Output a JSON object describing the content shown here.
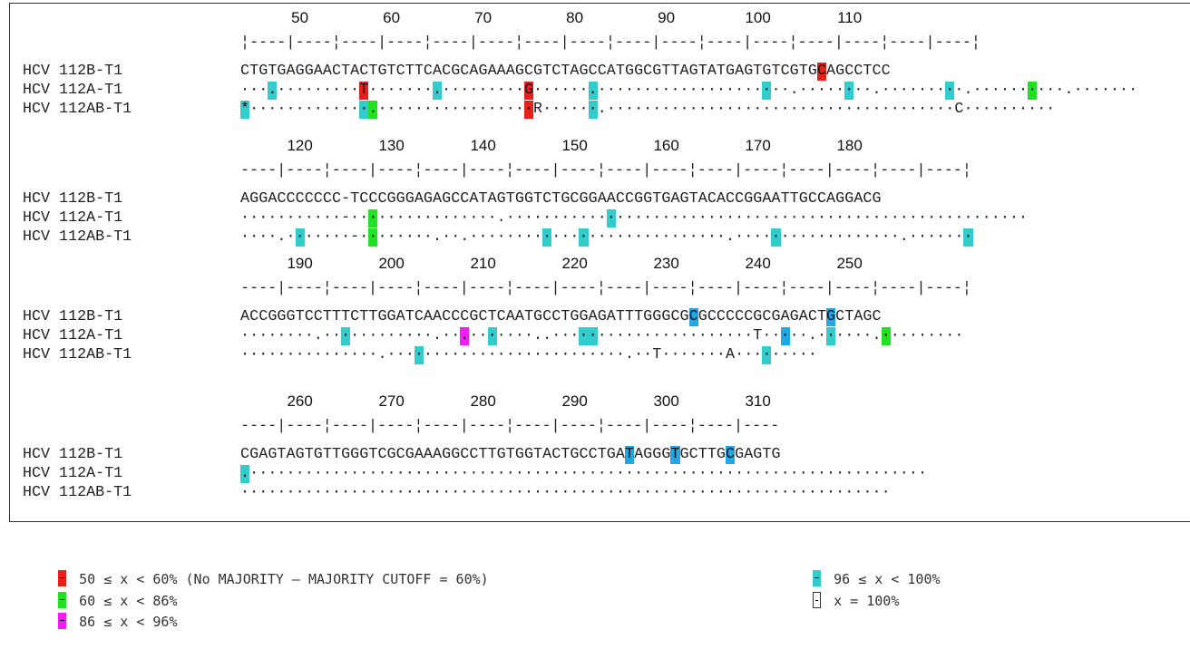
{
  "blocks": [
    {
      "start": 44,
      "numbers": [
        [
          "50",
          "50"
        ],
        [
          "60",
          "60"
        ],
        [
          "70",
          "70"
        ],
        [
          "80",
          "80"
        ],
        [
          "90",
          "90"
        ],
        [
          "100",
          "100"
        ],
        [
          "110",
          "110"
        ]
      ],
      "ruler": "¦----|----¦----|----¦----|----¦----|----¦----|----¦----|----¦----|----¦----|----¦",
      "rows": [
        {
          "label": "HCV 112B-T1",
          "seq": "CTGTGAGGAACTACTGTCTTCACGCAGAAAGCGTCTAGCCATGGCGTTAGTATGAGTGTCGTGCAGCCTCC",
          "hl": {
            "63": "red"
          }
        },
        {
          "label": "HCV 112A-T1",
          "seq": "···.·········T·······.·········G······.·····················.········.·········.··········.·······.······",
          "hl": {
            "3": "cyan",
            "13": "red",
            "21": "cyan",
            "31": "red",
            "38": "cyan",
            "57": "cyan",
            "66": "cyan",
            "77": "cyan",
            "86": "green"
          }
        },
        {
          "label": "HCV 112AB-T1",
          "seq": "*·············.·················R······.······································C··········",
          "hl": {
            "0": "cyan",
            "13": "cyan",
            "14": "green",
            "31": "red",
            "38": "cyan"
          }
        }
      ]
    },
    {
      "start": 114,
      "numbers": [
        [
          "120",
          "120"
        ],
        [
          "130",
          "130"
        ],
        [
          "140",
          "140"
        ],
        [
          "150",
          "150"
        ],
        [
          "160",
          "160"
        ],
        [
          "170",
          "170"
        ],
        [
          "180",
          "180"
        ]
      ],
      "ruler": "----|----¦----|----¦----|----¦----|----¦----|----¦----|----¦----|----¦----|----¦",
      "rows": [
        {
          "label": "HCV 112B-T1",
          "seq": "AGGACCCCCCC-TCCCGGGAGAGCCATAGTGGTCTGCGGAACCGGTGAGTACACCGGAATTGCCAGGACG",
          "hl": {}
        },
        {
          "label": "HCV 112A-T1",
          "seq": "···········-················.·························································",
          "hl": {
            "14": "green",
            "40": "cyan"
          }
        },
        {
          "label": "HCV 112AB-T1",
          "seq": "····.·······-········.··.····························.··················.·······",
          "hl": {
            "6": "cyan",
            "14": "green",
            "33": "cyan",
            "37": "cyan",
            "58": "cyan",
            "79": "cyan"
          }
        }
      ]
    },
    {
      "start": 184,
      "numbers": [
        [
          "190",
          "190"
        ],
        [
          "200",
          "200"
        ],
        [
          "210",
          "210"
        ],
        [
          "220",
          "220"
        ],
        [
          "230",
          "230"
        ],
        [
          "240",
          "240"
        ],
        [
          "250",
          "250"
        ]
      ],
      "ruler": "----|----¦----|----¦----|----¦----|----¦----|----¦----|----¦----|----¦----|----¦",
      "rows": [
        {
          "label": "HCV 112B-T1",
          "seq": "ACCGGGTCCTTTCTTGGATCAACCCGCTCAATGCCTGGAGATTTGGGCGCGCCCCCGCGAGACTGCTAGC",
          "hl": {
            "49": "blue",
            "64": "blue"
          }
        },
        {
          "label": "HCV 112A-T1",
          "seq": "········.············.··.·······..······················T·····.······.·········",
          "hl": {
            "11": "cyan",
            "24": "magenta",
            "27": "cyan",
            "37": "cyan",
            "38": "cyan",
            "59": "blue",
            "64": "cyan",
            "70": "green"
          }
        },
        {
          "label": "HCV 112AB-T1",
          "seq": "···············.··························.··T·······A·········",
          "hl": {
            "19": "cyan",
            "57": "cyan"
          }
        }
      ]
    },
    {
      "start": 254,
      "numbers": [
        [
          "260",
          "260"
        ],
        [
          "270",
          "270"
        ],
        [
          "280",
          "280"
        ],
        [
          "290",
          "290"
        ],
        [
          "300",
          "300"
        ],
        [
          "310",
          "310"
        ]
      ],
      "ruler": "----|----¦----|----¦----|----¦----|----¦----|----¦----|----",
      "rows": [
        {
          "label": "HCV 112B-T1",
          "seq": "CGAGTAGTGTTGGGTCGCGAAAGGCCTTGTGGTACTGCCTGATAGGGTGCTTGCGAGTG",
          "hl": {
            "42": "blue",
            "47": "blue",
            "53": "blue"
          }
        },
        {
          "label": "HCV 112A-T1",
          "seq": ".··········································································",
          "hl": {
            "0": "cyan"
          }
        },
        {
          "label": "HCV 112AB-T1",
          "seq": "·······································································",
          "hl": {}
        }
      ]
    }
  ],
  "colors": {
    "red": "#e8201c",
    "green": "#22e022",
    "magenta": "#f21df2",
    "cyan": "#33cccc",
    "blue": "#1ea8e8"
  },
  "legend": [
    {
      "text": "50 ≤ x < 60% (No MAJORITY — MAJORITY CUTOFF = 60%)",
      "color": "red"
    },
    {
      "text": "60 ≤ x < 86%",
      "color": "green"
    },
    {
      "text": "86 ≤ x < 96%",
      "color": "magenta"
    },
    {
      "text": "96 ≤ x < 100%",
      "color": "cyan"
    },
    {
      "text": "x = 100%",
      "color": "white"
    }
  ]
}
